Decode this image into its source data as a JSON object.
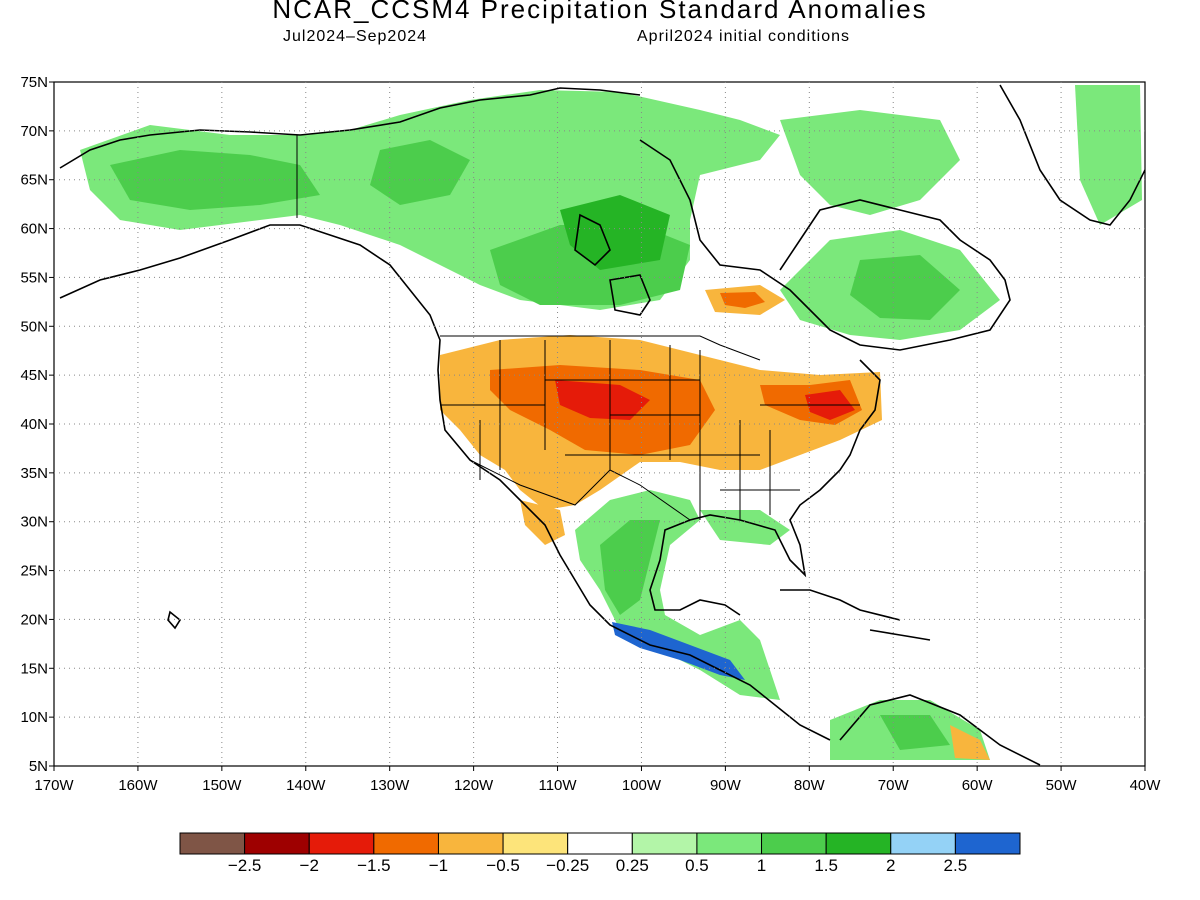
{
  "title": "NCAR_CCSM4 Precipitation Standard Anomalies",
  "subtitle_left": "Jul2024–Sep2024",
  "subtitle_right": "April2024 initial conditions",
  "map": {
    "lon_range": [
      -170,
      -40
    ],
    "lat_range": [
      5,
      75
    ],
    "lat_ticks": [
      "5N",
      "10N",
      "15N",
      "20N",
      "25N",
      "30N",
      "35N",
      "40N",
      "45N",
      "50N",
      "55N",
      "60N",
      "65N",
      "70N",
      "75N"
    ],
    "lon_ticks": [
      "170W",
      "160W",
      "150W",
      "140W",
      "130W",
      "120W",
      "110W",
      "100W",
      "90W",
      "80W",
      "70W",
      "60W",
      "50W",
      "40W"
    ],
    "gridlines": "dotted",
    "regions": [
      {
        "name": "Alaska / NW Canada wet",
        "color": "#4ccd4c"
      },
      {
        "name": "Central Canada wet",
        "color": "#25b425"
      },
      {
        "name": "Northern Plains dry",
        "color": "#f06a00"
      },
      {
        "name": "Great Lakes / NE dry",
        "color": "#e51b09"
      },
      {
        "name": "Southern Mexico wet",
        "color": "#1e65d0"
      }
    ]
  },
  "colorbar": {
    "colors": [
      "#7f5546",
      "#9e0000",
      "#e51b09",
      "#f06a00",
      "#f8b53d",
      "#fde47a",
      "#ffffff",
      "#b3f5a8",
      "#7be87b",
      "#4ccd4c",
      "#25b425",
      "#94d2f6",
      "#1e65d0"
    ],
    "labels": [
      "−2.5",
      "−2",
      "−1.5",
      "−1",
      "−0.5",
      "−0.25",
      "0.25",
      "0.5",
      "1",
      "1.5",
      "2",
      "2.5"
    ]
  }
}
